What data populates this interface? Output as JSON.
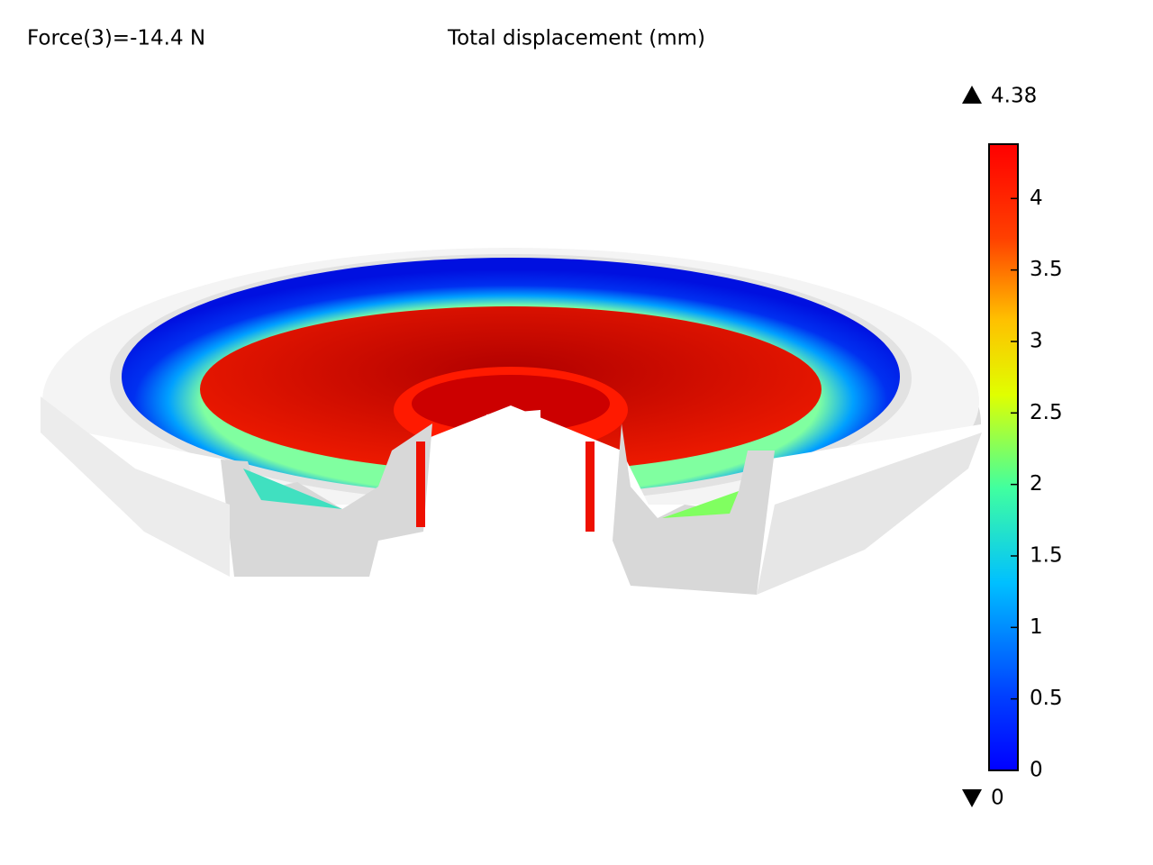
{
  "annotation": "Force(3)=-14.4 N",
  "title": "Total displacement (mm)",
  "colorbar": {
    "min": 0,
    "max": 4.38,
    "ticks": [
      0,
      0.5,
      1,
      1.5,
      2,
      2.5,
      3,
      3.5,
      4
    ]
  }
}
